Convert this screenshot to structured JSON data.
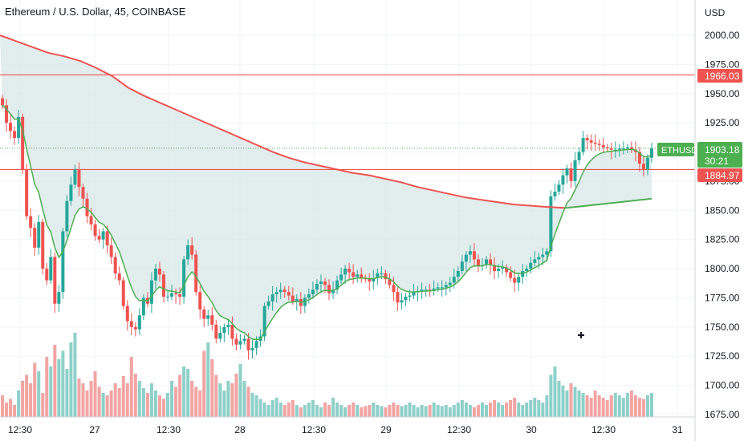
{
  "header": {
    "title": "Ethereum / U.S. Dollar, 45, COINBASE"
  },
  "price_axis": {
    "currency": "USD"
  },
  "price_tags": {
    "resistance": "1966.03",
    "symbol": "ETHUSD",
    "last_price": "1903.18",
    "countdown": "30:21",
    "support": "1884.97"
  },
  "colors": {
    "up": "#26a69a",
    "down": "#ef5350",
    "ema_fast": "#4caf50",
    "ma_slow": "#ef5350",
    "fill": "#d6e6e6",
    "grid": "#f0f3fa"
  },
  "chart_data": {
    "type": "candlestick",
    "title": "Ethereum / U.S. Dollar, 45, COINBASE",
    "yaxis": {
      "label": "USD",
      "ticks": [
        1675,
        1700,
        1725,
        1750,
        1775,
        1800,
        1825,
        1850,
        1875,
        1900,
        1925,
        1950,
        1975,
        2000
      ],
      "tick_labels": [
        "1675.00",
        "1700.00",
        "1725.00",
        "1750.00",
        "1775.00",
        "1800.00",
        "1825.00",
        "1850.00",
        "1875.00",
        "1900.00",
        "1925.00",
        "1950.00",
        "1975.00",
        "2000.00"
      ],
      "ylim": [
        1672,
        2022
      ]
    },
    "xaxis": {
      "tick_labels": [
        "12:30",
        "27",
        "12:30",
        "28",
        "12:30",
        "29",
        "12:30",
        "30",
        "12:30",
        "31"
      ]
    },
    "horizontal_lines": [
      {
        "value": 1966.03,
        "label": "1966.03",
        "color": "#ef5350"
      },
      {
        "value": 1884.97,
        "label": "1884.97",
        "color": "#ef5350"
      }
    ],
    "last_price": 1903.18,
    "close_path": [
      1940,
      1925,
      1918,
      1912,
      1930,
      1885,
      1845,
      1835,
      1818,
      1840,
      1800,
      1790,
      1810,
      1770,
      1780,
      1832,
      1858,
      1872,
      1885,
      1870,
      1860,
      1845,
      1838,
      1828,
      1825,
      1832,
      1820,
      1810,
      1796,
      1790,
      1768,
      1755,
      1750,
      1748,
      1760,
      1775,
      1770,
      1790,
      1800,
      1795,
      1776,
      1776,
      1779,
      1778,
      1776,
      1808,
      1820,
      1812,
      1780,
      1765,
      1757,
      1760,
      1752,
      1740,
      1745,
      1750,
      1752,
      1740,
      1735,
      1738,
      1740,
      1730,
      1732,
      1738,
      1742,
      1768,
      1772,
      1778,
      1780,
      1782,
      1780,
      1777,
      1772,
      1774,
      1768,
      1775,
      1778,
      1782,
      1787,
      1789,
      1786,
      1779,
      1782,
      1790,
      1795,
      1800,
      1797,
      1793,
      1795,
      1792,
      1791,
      1789,
      1792,
      1796,
      1796,
      1791,
      1786,
      1780,
      1771,
      1773,
      1776,
      1777,
      1780,
      1781,
      1782,
      1782,
      1781,
      1783,
      1784,
      1784,
      1786,
      1788,
      1793,
      1798,
      1806,
      1812,
      1815,
      1808,
      1802,
      1803,
      1808,
      1803,
      1798,
      1800,
      1801,
      1797,
      1792,
      1788,
      1793,
      1798,
      1800,
      1805,
      1808,
      1810,
      1812,
      1815,
      1862,
      1866,
      1872,
      1880,
      1886,
      1875,
      1893,
      1900,
      1912,
      1910,
      1908,
      1907,
      1906,
      1904,
      1903,
      1902,
      1902,
      1903,
      1903,
      1904,
      1902,
      1900,
      1890,
      1885,
      1895,
      1903
    ],
    "volume_path": [
      0.18,
      0.12,
      0.15,
      0.1,
      0.22,
      0.3,
      0.35,
      0.28,
      0.45,
      0.38,
      0.2,
      0.5,
      0.42,
      0.6,
      0.48,
      0.55,
      0.4,
      0.62,
      0.7,
      0.32,
      0.28,
      0.22,
      0.3,
      0.38,
      0.25,
      0.2,
      0.18,
      0.22,
      0.28,
      0.24,
      0.34,
      0.28,
      0.5,
      0.36,
      0.3,
      0.24,
      0.2,
      0.28,
      0.22,
      0.18,
      0.15,
      0.2,
      0.3,
      0.25,
      0.35,
      0.42,
      0.4,
      0.3,
      0.25,
      0.22,
      0.55,
      0.62,
      0.48,
      0.35,
      0.28,
      0.22,
      0.3,
      0.28,
      0.36,
      0.44,
      0.3,
      0.25,
      0.2,
      0.18,
      0.15,
      0.12,
      0.1,
      0.14,
      0.16,
      0.12,
      0.1,
      0.12,
      0.14,
      0.1,
      0.08,
      0.1,
      0.12,
      0.14,
      0.1,
      0.08,
      0.12,
      0.1,
      0.16,
      0.12,
      0.1,
      0.08,
      0.1,
      0.12,
      0.1,
      0.08,
      0.09,
      0.1,
      0.12,
      0.1,
      0.09,
      0.08,
      0.1,
      0.12,
      0.1,
      0.09,
      0.1,
      0.12,
      0.1,
      0.08,
      0.1,
      0.09,
      0.1,
      0.12,
      0.1,
      0.09,
      0.1,
      0.08,
      0.1,
      0.12,
      0.14,
      0.12,
      0.1,
      0.08,
      0.1,
      0.12,
      0.1,
      0.12,
      0.14,
      0.12,
      0.1,
      0.12,
      0.14,
      0.16,
      0.12,
      0.1,
      0.12,
      0.14,
      0.16,
      0.14,
      0.12,
      0.18,
      0.35,
      0.42,
      0.3,
      0.26,
      0.22,
      0.28,
      0.25,
      0.22,
      0.2,
      0.18,
      0.16,
      0.22,
      0.18,
      0.16,
      0.14,
      0.18,
      0.2,
      0.18,
      0.16,
      0.2,
      0.22,
      0.18,
      0.16,
      0.15,
      0.18,
      0.2
    ],
    "ma_slow": [
      [
        0,
        2000
      ],
      [
        20,
        1995
      ],
      [
        40,
        1990
      ],
      [
        60,
        1985
      ],
      [
        80,
        1982
      ],
      [
        100,
        1978
      ],
      [
        120,
        1972
      ],
      [
        140,
        1965
      ],
      [
        160,
        1955
      ],
      [
        180,
        1948
      ],
      [
        200,
        1942
      ],
      [
        220,
        1936
      ],
      [
        240,
        1930
      ],
      [
        260,
        1924
      ],
      [
        280,
        1918
      ],
      [
        300,
        1912
      ],
      [
        320,
        1906
      ],
      [
        340,
        1900
      ],
      [
        360,
        1895
      ],
      [
        380,
        1891
      ],
      [
        400,
        1888
      ],
      [
        420,
        1885
      ],
      [
        440,
        1882
      ],
      [
        460,
        1880
      ],
      [
        480,
        1877
      ],
      [
        500,
        1874
      ],
      [
        520,
        1870
      ],
      [
        540,
        1867
      ],
      [
        560,
        1864
      ],
      [
        580,
        1861
      ],
      [
        600,
        1859
      ],
      [
        620,
        1857
      ],
      [
        640,
        1855
      ],
      [
        660,
        1854
      ],
      [
        680,
        1853
      ],
      [
        705,
        1852
      ]
    ],
    "ema_fast_note": "computed from close_path"
  }
}
